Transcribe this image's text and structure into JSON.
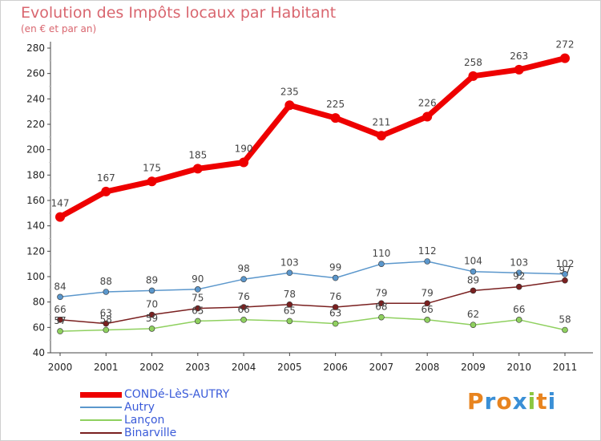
{
  "title": "Evolution des Impôts locaux par Habitant",
  "subtitle": "(en € et par an)",
  "brand": {
    "letters": [
      "P",
      "r",
      "o",
      "x",
      "i",
      "t",
      "i"
    ],
    "colors": [
      "#e8841f",
      "#3a8fd6",
      "#e8841f",
      "#3a8fd6",
      "#8cc63f",
      "#e8841f",
      "#3a8fd6"
    ]
  },
  "chart_data": {
    "type": "line",
    "x": [
      "2000",
      "2001",
      "2002",
      "2003",
      "2004",
      "2005",
      "2006",
      "2007",
      "2008",
      "2009",
      "2010",
      "2011"
    ],
    "ylim": [
      40,
      280
    ],
    "yticks": [
      40,
      60,
      80,
      100,
      120,
      140,
      160,
      180,
      200,
      220,
      240,
      260,
      280
    ],
    "grid": false,
    "legend_position": "bottom-left",
    "series": [
      {
        "name": "CONDé-LèS-AUTRY",
        "color": "#ee0000",
        "values": [
          147,
          167,
          175,
          185,
          190,
          235,
          225,
          211,
          226,
          258,
          263,
          272
        ],
        "labels": [
          "147",
          "167",
          "175",
          "185",
          "190",
          "235",
          "225",
          "211",
          "226",
          "258",
          "263",
          "272"
        ]
      },
      {
        "name": "Autry",
        "color": "#5b97cc",
        "values": [
          84,
          88,
          89,
          90,
          98,
          103,
          99,
          110,
          112,
          104,
          103,
          102
        ],
        "labels": [
          "84",
          "88",
          "89",
          "90",
          "98",
          "103",
          "99",
          "110",
          "112",
          "104",
          "103",
          "102"
        ]
      },
      {
        "name": "Lançon",
        "color": "#8fd05f",
        "values": [
          57,
          58,
          59,
          65,
          66,
          65,
          63,
          68,
          66,
          62,
          66,
          58
        ],
        "labels": [
          "57",
          "58",
          "59",
          "65",
          "66",
          "65",
          "63",
          "68",
          "66",
          "62",
          "66",
          "58"
        ]
      },
      {
        "name": "Binarville",
        "color": "#7a2020",
        "values": [
          66,
          63,
          70,
          75,
          76,
          78,
          76,
          79,
          79,
          89,
          92,
          97
        ],
        "labels": [
          "66",
          "63",
          "70",
          "75",
          "76",
          "78",
          "76",
          "79",
          "79",
          "89",
          "92",
          "97"
        ]
      }
    ]
  }
}
